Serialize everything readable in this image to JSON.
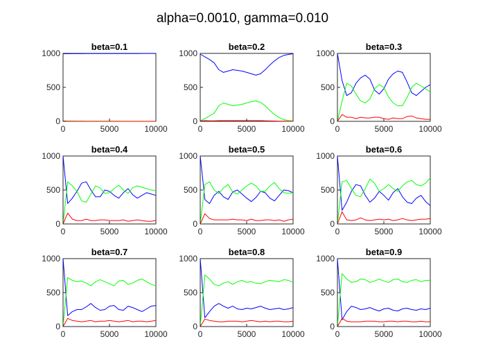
{
  "figure": {
    "suptitle": "alpha=0.0010, gamma=0.010"
  },
  "colors": {
    "blue": "#0000ff",
    "green": "#00ff00",
    "red": "#ff0000"
  },
  "chart_data": [
    {
      "type": "line",
      "title": "beta=0.1",
      "xlim": [
        0,
        10000
      ],
      "ylim": [
        0,
        1000
      ],
      "xticks": [
        0,
        5000,
        10000
      ],
      "yticks": [
        0,
        500,
        1000
      ],
      "x": [
        0,
        500,
        1000,
        1500,
        2000,
        2500,
        3000,
        3500,
        4000,
        4500,
        5000,
        5500,
        6000,
        6500,
        7000,
        7500,
        8000,
        8500,
        9000,
        9500,
        10000
      ],
      "series": [
        {
          "color": "blue",
          "values": [
            995,
            995,
            996,
            996,
            996,
            997,
            997,
            997,
            997,
            997,
            998,
            998,
            998,
            998,
            998,
            998,
            998,
            999,
            999,
            999,
            999
          ]
        },
        {
          "color": "green",
          "values": [
            0,
            4,
            4,
            3,
            3,
            3,
            2,
            2,
            2,
            2,
            2,
            2,
            2,
            1,
            1,
            1,
            1,
            1,
            1,
            1,
            1
          ]
        },
        {
          "color": "red",
          "values": [
            5,
            2,
            1,
            1,
            1,
            0,
            0,
            0,
            0,
            0,
            0,
            0,
            0,
            0,
            0,
            0,
            0,
            0,
            0,
            0,
            0
          ]
        }
      ]
    },
    {
      "type": "line",
      "title": "beta=0.2",
      "xlim": [
        0,
        10000
      ],
      "ylim": [
        0,
        1000
      ],
      "xticks": [
        0,
        5000,
        10000
      ],
      "yticks": [
        0,
        500,
        1000
      ],
      "x": [
        0,
        500,
        1000,
        1500,
        2000,
        2500,
        3000,
        3500,
        4000,
        4500,
        5000,
        5500,
        6000,
        6500,
        7000,
        7500,
        8000,
        8500,
        9000,
        9500,
        10000
      ],
      "series": [
        {
          "color": "blue",
          "values": [
            990,
            950,
            910,
            860,
            760,
            720,
            740,
            760,
            750,
            740,
            720,
            700,
            680,
            700,
            760,
            830,
            890,
            940,
            970,
            985,
            995
          ]
        },
        {
          "color": "green",
          "values": [
            5,
            40,
            80,
            120,
            230,
            270,
            250,
            230,
            240,
            250,
            270,
            290,
            300,
            280,
            230,
            160,
            100,
            55,
            25,
            12,
            5
          ]
        },
        {
          "color": "red",
          "values": [
            5,
            10,
            8,
            8,
            10,
            10,
            10,
            10,
            10,
            10,
            10,
            10,
            10,
            10,
            8,
            6,
            5,
            3,
            2,
            1,
            0
          ]
        }
      ]
    },
    {
      "type": "line",
      "title": "beta=0.3",
      "xlim": [
        0,
        10000
      ],
      "ylim": [
        0,
        1000
      ],
      "xticks": [
        0,
        5000,
        10000
      ],
      "yticks": [
        0,
        500,
        1000
      ],
      "x": [
        0,
        500,
        1000,
        1500,
        2000,
        2500,
        3000,
        3500,
        4000,
        4500,
        5000,
        5500,
        6000,
        6500,
        7000,
        7500,
        8000,
        8500,
        9000,
        9500,
        10000
      ],
      "series": [
        {
          "color": "blue",
          "values": [
            1000,
            600,
            380,
            420,
            560,
            640,
            680,
            620,
            460,
            400,
            480,
            620,
            700,
            740,
            720,
            580,
            420,
            380,
            440,
            500,
            540
          ]
        },
        {
          "color": "green",
          "values": [
            0,
            300,
            560,
            520,
            400,
            300,
            270,
            330,
            480,
            540,
            500,
            360,
            270,
            230,
            230,
            350,
            500,
            560,
            520,
            480,
            430
          ]
        },
        {
          "color": "red",
          "values": [
            0,
            100,
            60,
            60,
            40,
            60,
            50,
            50,
            60,
            60,
            40,
            30,
            50,
            40,
            40,
            70,
            80,
            50,
            40,
            30,
            30
          ]
        }
      ]
    },
    {
      "type": "line",
      "title": "beta=0.4",
      "xlim": [
        0,
        10000
      ],
      "ylim": [
        0,
        1000
      ],
      "xticks": [
        0,
        5000,
        10000
      ],
      "yticks": [
        0,
        500,
        1000
      ],
      "x": [
        0,
        500,
        1000,
        1500,
        2000,
        2500,
        3000,
        3500,
        4000,
        4500,
        5000,
        5500,
        6000,
        6500,
        7000,
        7500,
        8000,
        8500,
        9000,
        9500,
        10000
      ],
      "series": [
        {
          "color": "blue",
          "values": [
            1000,
            300,
            380,
            480,
            600,
            620,
            500,
            400,
            400,
            500,
            480,
            420,
            380,
            460,
            520,
            430,
            380,
            420,
            460,
            440,
            420
          ]
        },
        {
          "color": "green",
          "values": [
            0,
            620,
            560,
            480,
            340,
            320,
            440,
            560,
            530,
            450,
            460,
            520,
            570,
            500,
            450,
            530,
            560,
            540,
            520,
            500,
            490
          ]
        },
        {
          "color": "red",
          "values": [
            0,
            160,
            70,
            50,
            50,
            70,
            50,
            50,
            60,
            60,
            50,
            50,
            50,
            60,
            40,
            50,
            60,
            50,
            40,
            40,
            50
          ]
        }
      ]
    },
    {
      "type": "line",
      "title": "beta=0.5",
      "xlim": [
        0,
        10000
      ],
      "ylim": [
        0,
        1000
      ],
      "xticks": [
        0,
        5000,
        10000
      ],
      "yticks": [
        0,
        500,
        1000
      ],
      "x": [
        0,
        500,
        1000,
        1500,
        2000,
        2500,
        3000,
        3500,
        4000,
        4500,
        5000,
        5500,
        6000,
        6500,
        7000,
        7500,
        8000,
        8500,
        9000,
        9500,
        10000
      ],
      "series": [
        {
          "color": "blue",
          "values": [
            1000,
            360,
            300,
            420,
            480,
            400,
            360,
            470,
            500,
            440,
            380,
            330,
            390,
            480,
            460,
            380,
            340,
            420,
            500,
            490,
            460
          ]
        },
        {
          "color": "green",
          "values": [
            0,
            580,
            620,
            500,
            450,
            530,
            580,
            470,
            440,
            500,
            560,
            600,
            560,
            480,
            480,
            560,
            610,
            520,
            460,
            450,
            460
          ]
        },
        {
          "color": "red",
          "values": [
            0,
            150,
            80,
            60,
            60,
            60,
            60,
            70,
            60,
            60,
            50,
            70,
            50,
            50,
            60,
            60,
            50,
            60,
            40,
            60,
            70
          ]
        }
      ]
    },
    {
      "type": "line",
      "title": "beta=0.6",
      "xlim": [
        0,
        10000
      ],
      "ylim": [
        0,
        1000
      ],
      "xticks": [
        0,
        5000,
        10000
      ],
      "yticks": [
        0,
        500,
        1000
      ],
      "x": [
        0,
        500,
        1000,
        1500,
        2000,
        2500,
        3000,
        3500,
        4000,
        4500,
        5000,
        5500,
        6000,
        6500,
        7000,
        7500,
        8000,
        8500,
        9000,
        9500,
        10000
      ],
      "series": [
        {
          "color": "blue",
          "values": [
            1000,
            200,
            320,
            480,
            580,
            560,
            420,
            320,
            380,
            480,
            420,
            350,
            460,
            520,
            400,
            320,
            300,
            380,
            420,
            330,
            270
          ]
        },
        {
          "color": "green",
          "values": [
            0,
            620,
            640,
            520,
            420,
            400,
            520,
            660,
            600,
            480,
            520,
            580,
            520,
            480,
            560,
            620,
            640,
            580,
            560,
            600,
            680
          ]
        },
        {
          "color": "red",
          "values": [
            0,
            180,
            60,
            50,
            60,
            90,
            60,
            50,
            60,
            70,
            60,
            70,
            50,
            60,
            80,
            60,
            50,
            60,
            70,
            70,
            80
          ]
        }
      ]
    },
    {
      "type": "line",
      "title": "beta=0.7",
      "xlim": [
        0,
        10000
      ],
      "ylim": [
        0,
        1000
      ],
      "xticks": [
        0,
        5000,
        10000
      ],
      "yticks": [
        0,
        500,
        1000
      ],
      "x": [
        0,
        500,
        1000,
        1500,
        2000,
        2500,
        3000,
        3500,
        4000,
        4500,
        5000,
        5500,
        6000,
        6500,
        7000,
        7500,
        8000,
        8500,
        9000,
        9500,
        10000
      ],
      "series": [
        {
          "color": "blue",
          "values": [
            1000,
            160,
            220,
            250,
            250,
            290,
            340,
            280,
            240,
            250,
            300,
            310,
            250,
            240,
            300,
            280,
            250,
            220,
            260,
            300,
            310
          ]
        },
        {
          "color": "green",
          "values": [
            0,
            720,
            680,
            660,
            670,
            640,
            600,
            660,
            690,
            660,
            630,
            600,
            670,
            680,
            620,
            640,
            680,
            700,
            660,
            620,
            600
          ]
        },
        {
          "color": "red",
          "values": [
            0,
            120,
            90,
            80,
            70,
            80,
            90,
            70,
            80,
            80,
            90,
            80,
            70,
            80,
            90,
            70,
            80,
            80,
            70,
            80,
            90
          ]
        }
      ]
    },
    {
      "type": "line",
      "title": "beta=0.8",
      "xlim": [
        0,
        10000
      ],
      "ylim": [
        0,
        1000
      ],
      "xticks": [
        0,
        5000,
        10000
      ],
      "yticks": [
        0,
        500,
        1000
      ],
      "x": [
        0,
        500,
        1000,
        1500,
        2000,
        2500,
        3000,
        3500,
        4000,
        4500,
        5000,
        5500,
        6000,
        6500,
        7000,
        7500,
        8000,
        8500,
        9000,
        9500,
        10000
      ],
      "series": [
        {
          "color": "blue",
          "values": [
            1000,
            130,
            220,
            300,
            340,
            300,
            270,
            300,
            260,
            250,
            270,
            260,
            280,
            300,
            270,
            250,
            260,
            270,
            250,
            260,
            280
          ]
        },
        {
          "color": "green",
          "values": [
            0,
            760,
            700,
            620,
            600,
            640,
            660,
            620,
            660,
            680,
            650,
            660,
            640,
            630,
            660,
            680,
            670,
            660,
            690,
            680,
            650
          ]
        },
        {
          "color": "red",
          "values": [
            0,
            110,
            90,
            80,
            70,
            70,
            80,
            80,
            80,
            70,
            80,
            90,
            80,
            70,
            80,
            70,
            80,
            80,
            70,
            70,
            80
          ]
        }
      ]
    },
    {
      "type": "line",
      "title": "beta=0.9",
      "xlim": [
        0,
        10000
      ],
      "ylim": [
        0,
        1000
      ],
      "xticks": [
        0,
        5000,
        10000
      ],
      "yticks": [
        0,
        500,
        1000
      ],
      "x": [
        0,
        500,
        1000,
        1500,
        2000,
        2500,
        3000,
        3500,
        4000,
        4500,
        5000,
        5500,
        6000,
        6500,
        7000,
        7500,
        8000,
        8500,
        9000,
        9500,
        10000
      ],
      "series": [
        {
          "color": "blue",
          "values": [
            1000,
            100,
            220,
            300,
            280,
            250,
            260,
            280,
            250,
            230,
            260,
            270,
            240,
            230,
            260,
            270,
            250,
            240,
            260,
            250,
            270
          ]
        },
        {
          "color": "green",
          "values": [
            0,
            780,
            700,
            650,
            660,
            700,
            690,
            650,
            670,
            700,
            670,
            650,
            690,
            700,
            660,
            650,
            680,
            690,
            660,
            680,
            680
          ]
        },
        {
          "color": "red",
          "values": [
            0,
            120,
            80,
            70,
            70,
            70,
            80,
            80,
            80,
            70,
            70,
            80,
            80,
            70,
            80,
            80,
            70,
            70,
            80,
            70,
            70
          ]
        }
      ]
    }
  ]
}
